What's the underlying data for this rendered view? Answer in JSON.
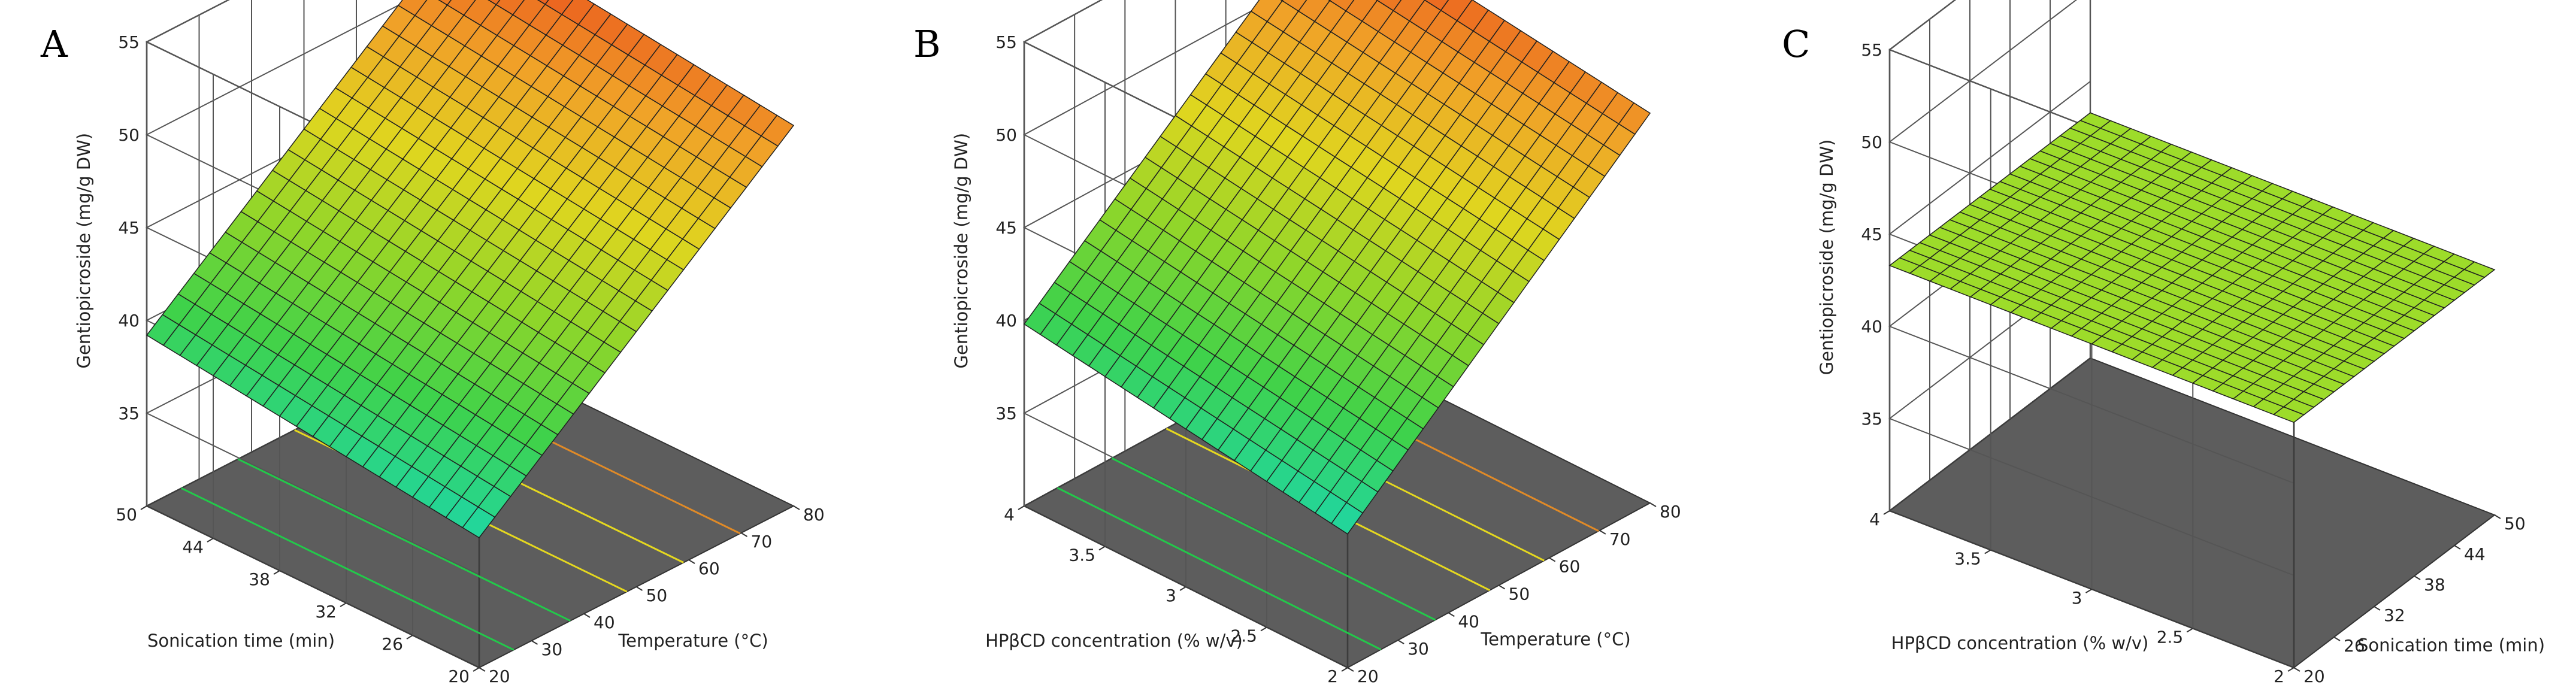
{
  "chart_data": [
    {
      "type": "surface",
      "panel": "A",
      "zlabel": "Gentiopicroside (mg/g DW)",
      "zticks": [
        "35",
        "40",
        "45",
        "50",
        "55"
      ],
      "zlim": [
        30,
        55
      ],
      "x": {
        "label": "Temperature (°C)",
        "range": [
          20,
          80
        ],
        "ticks": [
          "20",
          "30",
          "40",
          "50",
          "60",
          "70",
          "80"
        ]
      },
      "y": {
        "label": "Sonication time (min)",
        "range": [
          20,
          50
        ],
        "ticks": [
          "20",
          "26",
          "32",
          "38",
          "44",
          "50"
        ]
      },
      "surface": {
        "corners": {
          "x_min_y_min": 37.0,
          "x_max_y_min": 50.5,
          "x_min_y_max": 39.2,
          "x_max_y_max": 52.7
        }
      },
      "contour_colors": [
        "#22c94a",
        "#22c94a",
        "#e5d81f",
        "#e5d81f",
        "#e08a27"
      ],
      "colorscale": [
        "#1fd6a4",
        "#3fd24a",
        "#8fd62a",
        "#dfd61f",
        "#f0a228",
        "#ea4a1c"
      ]
    },
    {
      "type": "surface",
      "panel": "B",
      "zlabel": "Gentiopicroside (mg/g DW)",
      "zticks": [
        "35",
        "40",
        "45",
        "50",
        "55"
      ],
      "zlim": [
        30,
        55
      ],
      "x": {
        "label": "Temperature (°C)",
        "range": [
          20,
          80
        ],
        "ticks": [
          "20",
          "30",
          "40",
          "50",
          "60",
          "70",
          "80"
        ]
      },
      "y": {
        "label": "HPβCD concentration (% w/v)",
        "range": [
          2,
          4
        ],
        "ticks": [
          "2",
          "2.5",
          "3",
          "3.5",
          "4"
        ]
      },
      "surface": {
        "corners": {
          "x_min_y_min": 37.2,
          "x_max_y_min": 51.0,
          "x_min_y_max": 39.8,
          "x_max_y_max": 53.4
        }
      },
      "contour_colors": [
        "#22c94a",
        "#22c94a",
        "#e5d81f",
        "#e5d81f",
        "#e08a27"
      ],
      "colorscale": [
        "#1fd6a4",
        "#3fd24a",
        "#8fd62a",
        "#dfd61f",
        "#f0a228",
        "#ea4a1c"
      ]
    },
    {
      "type": "surface",
      "panel": "C",
      "zlabel": "Gentiopicroside (mg/g DW)",
      "zticks": [
        "35",
        "40",
        "45",
        "50",
        "55"
      ],
      "zlim": [
        30,
        55
      ],
      "x": {
        "label": "Sonication time (min)",
        "range": [
          20,
          50
        ],
        "ticks": [
          "20",
          "26",
          "32",
          "38",
          "44",
          "50"
        ]
      },
      "y": {
        "label": "HPβCD concentration (% w/v)",
        "range": [
          2,
          4
        ],
        "ticks": [
          "2",
          "2.5",
          "3",
          "3.5",
          "4"
        ]
      },
      "surface": {
        "corners": {
          "x_min_y_min": 43.3,
          "x_max_y_min": 43.3,
          "x_min_y_max": 43.3,
          "x_max_y_max": 43.3
        }
      },
      "contour_colors": [],
      "colorscale": [
        "#9ddc2a",
        "#9ddc2a"
      ]
    }
  ]
}
